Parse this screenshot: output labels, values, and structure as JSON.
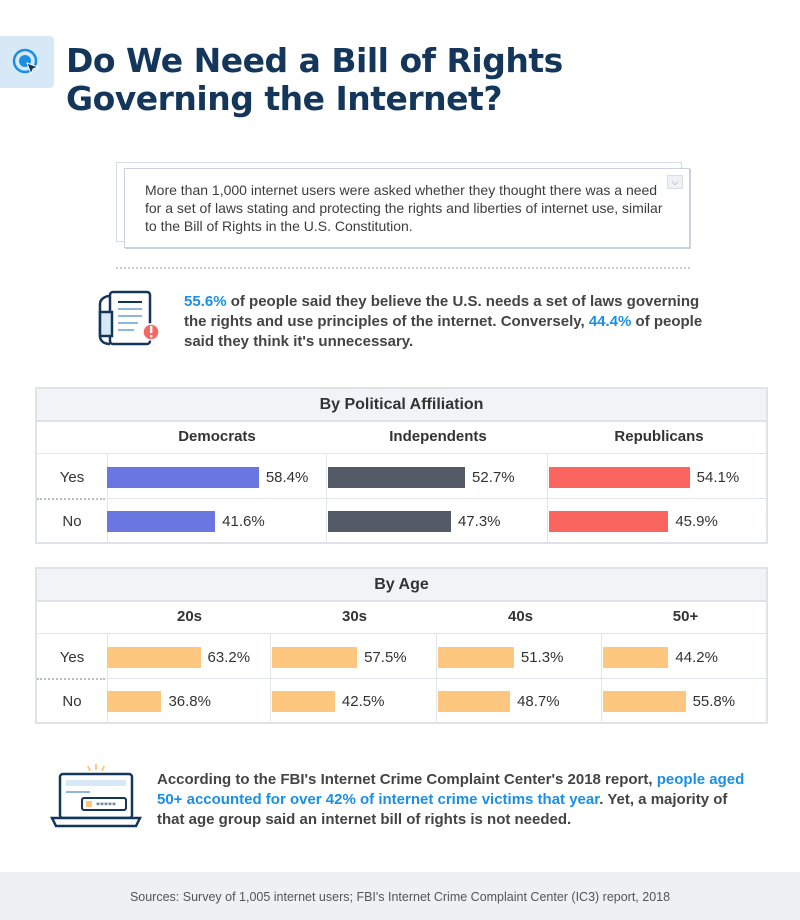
{
  "header": {
    "title_line1": "Do We Need a Bill of Rights",
    "title_line2": "Governing the Internet?",
    "logo_icon": "target-cursor-icon"
  },
  "intro": {
    "text": "More than 1,000 internet users were asked whether they thought there was a need for a set of laws stating and protecting the rights and liberties of internet use, similar to the Bill of Rights in the U.S. Constitution.",
    "icon": "chevron-down-icon"
  },
  "stat": {
    "icon": "document-alert-icon",
    "p1": "55.6%",
    "p2": " of people said they believe the U.S. needs a set of laws governing the rights and use principles of the internet. Conversely, ",
    "p3": "44.4%",
    "p4": " of people said they think it's unnecessary."
  },
  "fbi": {
    "icon": "laptop-password-icon",
    "p1": "According to the FBI's Internet Crime Complaint Center's 2018 report, ",
    "p2": "people aged 50+ accounted for over 42% of internet crime victims that year",
    "p3": ". Yet, a majority of that age group said an internet bill of rights is not needed."
  },
  "footer": {
    "text": "Sources: Survey of 1,005 internet users; FBI's Internet Crime Complaint Center (IC3) report, 2018"
  },
  "colors": {
    "democrats": "#6b77e0",
    "independents": "#555b66",
    "republicans": "#fb6560",
    "age": "#fdc77f",
    "highlight": "#1a8fe3",
    "title": "#13365a"
  },
  "chart_data": [
    {
      "type": "bar",
      "title": "By Political Affiliation",
      "categories": [
        "Yes",
        "No"
      ],
      "series": [
        {
          "name": "Democrats",
          "values": [
            58.4,
            41.6
          ],
          "labels": [
            "58.4%",
            "41.6%"
          ],
          "color": "#6b77e0"
        },
        {
          "name": "Independents",
          "values": [
            52.7,
            47.3
          ],
          "labels": [
            "52.7%",
            "47.3%"
          ],
          "color": "#555b66"
        },
        {
          "name": "Republicans",
          "values": [
            54.1,
            45.9
          ],
          "labels": [
            "54.1%",
            "45.9%"
          ],
          "color": "#fb6560"
        }
      ],
      "xlim": [
        0,
        100
      ],
      "unit": "%"
    },
    {
      "type": "bar",
      "title": "By Age",
      "categories": [
        "Yes",
        "No"
      ],
      "series": [
        {
          "name": "20s",
          "values": [
            63.2,
            36.8
          ],
          "labels": [
            "63.2%",
            "36.8%"
          ],
          "color": "#fdc77f"
        },
        {
          "name": "30s",
          "values": [
            57.5,
            42.5
          ],
          "labels": [
            "57.5%",
            "42.5%"
          ],
          "color": "#fdc77f"
        },
        {
          "name": "40s",
          "values": [
            51.3,
            48.7
          ],
          "labels": [
            "51.3%",
            "48.7%"
          ],
          "color": "#fdc77f"
        },
        {
          "name": "50+",
          "values": [
            44.2,
            55.8
          ],
          "labels": [
            "44.2%",
            "55.8%"
          ],
          "color": "#fdc77f"
        }
      ],
      "xlim": [
        0,
        100
      ],
      "unit": "%"
    }
  ]
}
